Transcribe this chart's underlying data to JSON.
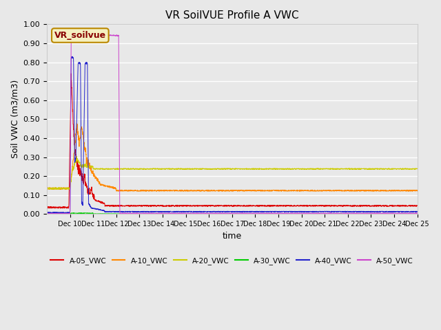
{
  "title": "VR SoilVUE Profile A VWC",
  "xlabel": "time",
  "ylabel": "Soil VWC (m3/m3)",
  "ylim": [
    0.0,
    1.0
  ],
  "yticks": [
    0.0,
    0.1,
    0.2,
    0.3,
    0.4,
    0.5,
    0.6,
    0.7,
    0.8,
    0.9,
    1.0
  ],
  "bg_color": "#e8e8e8",
  "grid_color": "white",
  "series": {
    "A-05_VWC": {
      "color": "#dd0000"
    },
    "A-10_VWC": {
      "color": "#ff8800"
    },
    "A-20_VWC": {
      "color": "#cccc00"
    },
    "A-30_VWC": {
      "color": "#00cc00"
    },
    "A-40_VWC": {
      "color": "#2222cc"
    },
    "A-50_VWC": {
      "color": "#cc44cc"
    }
  },
  "legend_label": "VR_soilvue",
  "legend_bg": "#f5f0c0",
  "legend_edge": "#bb8800",
  "n_days": 16,
  "start_day": 9,
  "ppd": 144
}
